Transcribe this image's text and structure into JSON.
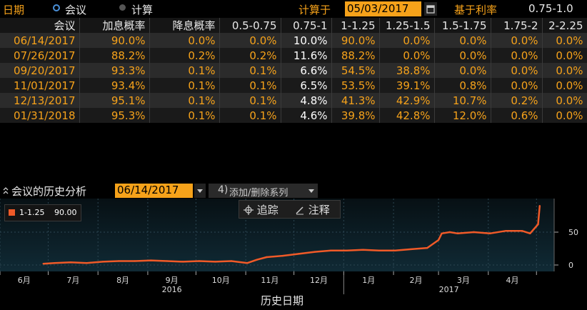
{
  "topbar": {
    "tab_date": "日期",
    "tab_meeting": "会议",
    "tab_calc": "计算",
    "calc_label": "计算于",
    "calc_date": "05/03/2017",
    "base_rate_label": "基于利率",
    "base_rate_value": "0.75-1.0"
  },
  "table": {
    "headers": [
      "会议",
      "加息概率",
      "降息概率",
      "0.5-0.75",
      "0.75-1",
      "1-1.25",
      "1.25-1.5",
      "1.5-1.75",
      "1.75-2",
      "2-2.25"
    ],
    "rows": [
      [
        "06/14/2017",
        "90.0%",
        "0.0%",
        "0.0%",
        "10.0%",
        "90.0%",
        "0.0%",
        "0.0%",
        "0.0%",
        "0.0%"
      ],
      [
        "07/26/2017",
        "88.2%",
        "0.2%",
        "0.2%",
        "11.6%",
        "88.2%",
        "0.0%",
        "0.0%",
        "0.0%",
        "0.0%"
      ],
      [
        "09/20/2017",
        "93.3%",
        "0.1%",
        "0.1%",
        "6.6%",
        "54.5%",
        "38.8%",
        "0.0%",
        "0.0%",
        "0.0%"
      ],
      [
        "11/01/2017",
        "93.4%",
        "0.1%",
        "0.1%",
        "6.5%",
        "53.5%",
        "39.1%",
        "0.8%",
        "0.0%",
        "0.0%"
      ],
      [
        "12/13/2017",
        "95.1%",
        "0.1%",
        "0.1%",
        "4.8%",
        "41.3%",
        "42.9%",
        "10.7%",
        "0.2%",
        "0.0%"
      ],
      [
        "01/31/2018",
        "95.3%",
        "0.1%",
        "0.1%",
        "4.6%",
        "39.8%",
        "42.8%",
        "12.0%",
        "0.6%",
        "0.0%"
      ]
    ]
  },
  "history": {
    "title": "会议的历史分析",
    "selected_meeting": "06/14/2017",
    "add_remove_label": "添加/删除系列",
    "trace_label": "追踪",
    "annotate_label": "注释"
  },
  "chart_data": {
    "type": "line",
    "series": [
      {
        "name": "1-1.25",
        "last_value_label": "90.00",
        "color": "#f05a28",
        "x": [
          "2016-06-28",
          "2016-07-05",
          "2016-07-15",
          "2016-07-25",
          "2016-08-04",
          "2016-08-14",
          "2016-08-24",
          "2016-09-03",
          "2016-09-13",
          "2016-09-23",
          "2016-10-03",
          "2016-10-13",
          "2016-10-23",
          "2016-11-02",
          "2016-11-08",
          "2016-11-14",
          "2016-11-24",
          "2016-12-04",
          "2016-12-14",
          "2016-12-24",
          "2017-01-03",
          "2017-01-13",
          "2017-01-23",
          "2017-02-02",
          "2017-02-12",
          "2017-02-22",
          "2017-03-01",
          "2017-03-03",
          "2017-03-08",
          "2017-03-13",
          "2017-03-23",
          "2017-04-02",
          "2017-04-12",
          "2017-04-22",
          "2017-04-27",
          "2017-05-02",
          "2017-05-03"
        ],
        "y": [
          2,
          3,
          4,
          3,
          5,
          6,
          6,
          7,
          6,
          5,
          6,
          5,
          6,
          3,
          8,
          12,
          14,
          17,
          20,
          22,
          22,
          23,
          22,
          22,
          24,
          26,
          38,
          48,
          50,
          48,
          50,
          48,
          52,
          52,
          48,
          62,
          90
        ]
      }
    ],
    "x_tick_labels": [
      "6月",
      "7月",
      "8月",
      "9月",
      "10月",
      "11月",
      "12月",
      "1月",
      "2月",
      "3月",
      "4月"
    ],
    "year_labels": [
      "2016",
      "2017"
    ],
    "y_ticks": [
      0,
      50
    ],
    "ylim": [
      0,
      100
    ],
    "xlabel": "历史日期",
    "grid": true,
    "legend": "top-left"
  }
}
